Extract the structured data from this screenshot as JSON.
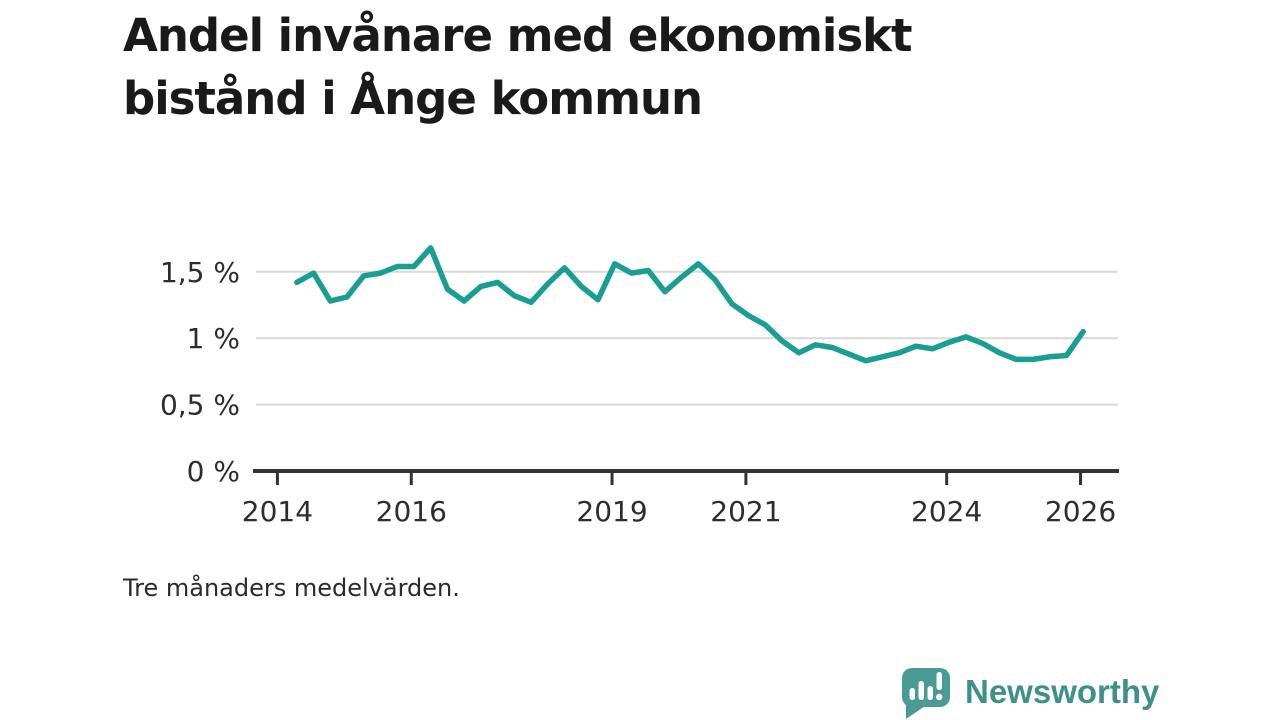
{
  "page": {
    "title_line1": "Andel invånare med ekonomiskt",
    "title_line2": "bistånd i Ånge kommun",
    "footnote": "Tre månaders medelvärden.",
    "brand": "Newsworthy"
  },
  "colors": {
    "series_line": "#189e92",
    "gridline": "#d9d9d9",
    "axis": "#333333",
    "tick_label": "#2d2d2d",
    "logo_bubble": "#4a9b95",
    "logo_text": "#3e908a",
    "logo_bars": "#ffffff"
  },
  "chart_data": {
    "type": "line",
    "title": "Andel invånare med ekonomiskt bistånd i Ånge kommun",
    "note": "Tre månaders medelvärden.",
    "unit": "%",
    "legend": "none",
    "grid": "horizontal-only",
    "ylim": [
      0,
      1.75
    ],
    "xlim": [
      2013.68,
      2026.56
    ],
    "x": [
      "2014-Q2",
      "2014-Q3",
      "2014-Q4",
      "2015-Q1",
      "2015-Q2",
      "2015-Q3",
      "2015-Q4",
      "2016-Q1",
      "2016-Q2",
      "2016-Q3",
      "2016-Q4",
      "2017-Q1",
      "2017-Q2",
      "2017-Q3",
      "2017-Q4",
      "2018-Q1",
      "2018-Q2",
      "2018-Q3",
      "2018-Q4",
      "2019-Q1",
      "2019-Q2",
      "2019-Q3",
      "2019-Q4",
      "2020-Q1",
      "2020-Q2",
      "2020-Q3",
      "2020-Q4",
      "2021-Q1",
      "2021-Q2",
      "2021-Q3",
      "2021-Q4",
      "2022-Q1",
      "2022-Q2",
      "2022-Q3",
      "2022-Q4",
      "2023-Q1",
      "2023-Q2",
      "2023-Q3",
      "2023-Q4",
      "2024-Q1",
      "2024-Q2",
      "2024-Q3",
      "2024-Q4",
      "2025-Q1",
      "2025-Q2",
      "2025-Q3",
      "2025-Q4",
      "2026-Q1"
    ],
    "values": [
      1.42,
      1.49,
      1.28,
      1.31,
      1.47,
      1.49,
      1.54,
      1.54,
      1.68,
      1.37,
      1.28,
      1.39,
      1.42,
      1.32,
      1.27,
      1.41,
      1.53,
      1.39,
      1.29,
      1.56,
      1.49,
      1.51,
      1.35,
      1.46,
      1.56,
      1.44,
      1.26,
      1.17,
      1.1,
      0.98,
      0.89,
      0.95,
      0.93,
      0.88,
      0.83,
      0.86,
      0.89,
      0.94,
      0.92,
      0.97,
      1.01,
      0.96,
      0.89,
      0.84,
      0.84,
      0.86,
      0.87,
      1.05
    ],
    "yticks": [
      {
        "value": 0,
        "label": "0 %"
      },
      {
        "value": 0.5,
        "label": "0,5 %"
      },
      {
        "value": 1,
        "label": "1 %"
      },
      {
        "value": 1.5,
        "label": "1,5 %"
      }
    ],
    "xticks": [
      {
        "value": 2014,
        "label": "2014"
      },
      {
        "value": 2016,
        "label": "2016"
      },
      {
        "value": 2019,
        "label": "2019"
      },
      {
        "value": 2021,
        "label": "2021"
      },
      {
        "value": 2024,
        "label": "2024"
      },
      {
        "value": 2026,
        "label": "2026"
      }
    ]
  }
}
